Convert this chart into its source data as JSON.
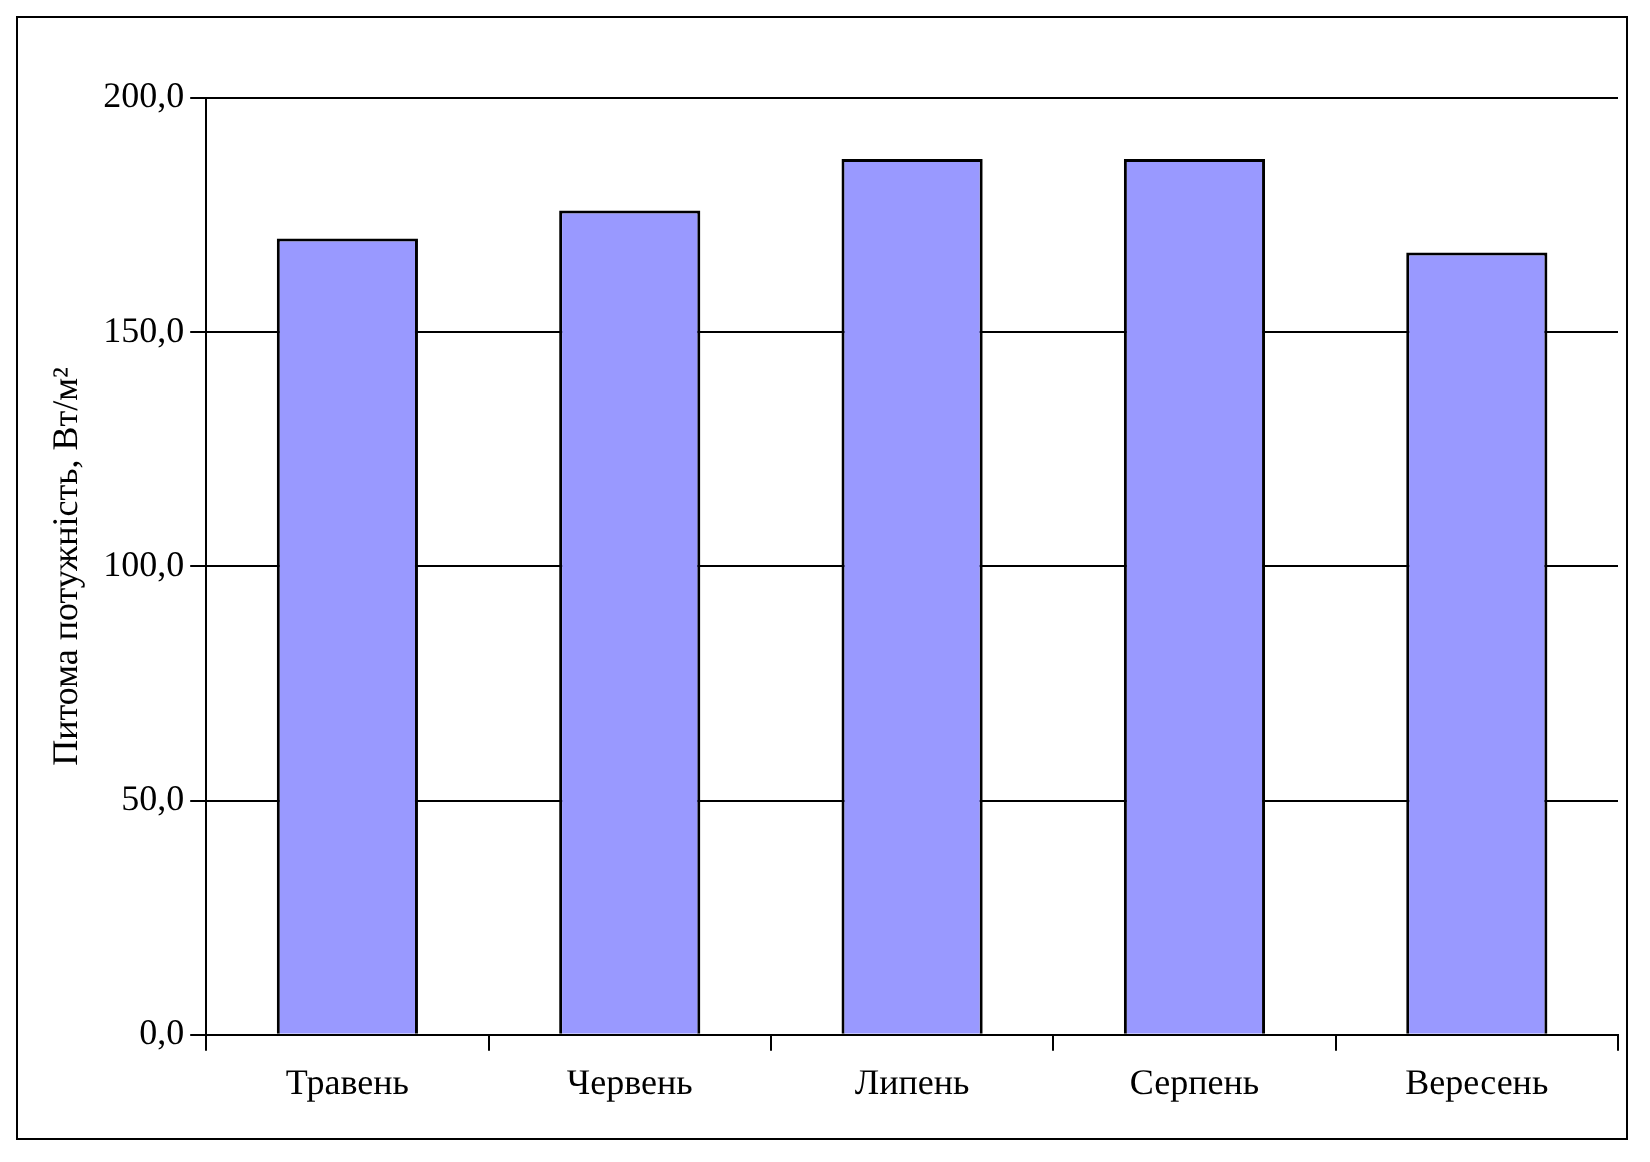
{
  "chart_data": {
    "type": "bar",
    "ylabel": "Питома потужність, Вт/м²",
    "categories": [
      "Травень",
      "Червень",
      "Липень",
      "Серпень",
      "Вересень"
    ],
    "values": [
      170,
      176,
      187,
      187,
      167
    ],
    "color": "#9999ff",
    "ylim": [
      0,
      200
    ],
    "yticks": [
      {
        "value": 0,
        "label": "0,0"
      },
      {
        "value": 50,
        "label": "50,0"
      },
      {
        "value": 100,
        "label": "100,0"
      },
      {
        "value": 150,
        "label": "150,0"
      },
      {
        "value": 200,
        "label": "200,0"
      }
    ],
    "grid": "y"
  }
}
